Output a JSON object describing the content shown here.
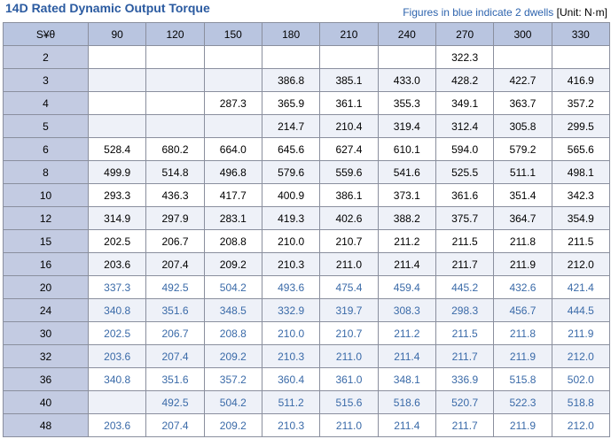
{
  "header": {
    "title": "14D Rated Dynamic Output Torque",
    "note": "Figures in blue indicate 2 dwells",
    "unit": "[Unit: N·m]"
  },
  "table": {
    "columns": [
      "S¥θ",
      "90",
      "120",
      "150",
      "180",
      "210",
      "240",
      "270",
      "300",
      "330"
    ],
    "rows": [
      {
        "label": "2",
        "color": "#000000",
        "cells": [
          null,
          null,
          null,
          null,
          null,
          null,
          "322.3",
          null,
          null
        ]
      },
      {
        "label": "3",
        "color": "#000000",
        "cells": [
          null,
          null,
          null,
          "386.8",
          "385.1",
          "433.0",
          "428.2",
          "422.7",
          "416.9"
        ]
      },
      {
        "label": "4",
        "color": "#000000",
        "cells": [
          null,
          null,
          "287.3",
          "365.9",
          "361.1",
          "355.3",
          "349.1",
          "363.7",
          "357.2"
        ]
      },
      {
        "label": "5",
        "color": "#000000",
        "cells": [
          null,
          null,
          null,
          "214.7",
          "210.4",
          "319.4",
          "312.4",
          "305.8",
          "299.5"
        ]
      },
      {
        "label": "6",
        "color": "#000000",
        "cells": [
          "528.4",
          "680.2",
          "664.0",
          "645.6",
          "627.4",
          "610.1",
          "594.0",
          "579.2",
          "565.6"
        ]
      },
      {
        "label": "8",
        "color": "#000000",
        "cells": [
          "499.9",
          "514.8",
          "496.8",
          "579.6",
          "559.6",
          "541.6",
          "525.5",
          "511.1",
          "498.1"
        ]
      },
      {
        "label": "10",
        "color": "#000000",
        "cells": [
          "293.3",
          "436.3",
          "417.7",
          "400.9",
          "386.1",
          "373.1",
          "361.6",
          "351.4",
          "342.3"
        ]
      },
      {
        "label": "12",
        "color": "#000000",
        "cells": [
          "314.9",
          "297.9",
          "283.1",
          "419.3",
          "402.6",
          "388.2",
          "375.7",
          "364.7",
          "354.9"
        ]
      },
      {
        "label": "15",
        "color": "#000000",
        "cells": [
          "202.5",
          "206.7",
          "208.8",
          "210.0",
          "210.7",
          "211.2",
          "211.5",
          "211.8",
          "211.5"
        ]
      },
      {
        "label": "16",
        "color": "#000000",
        "cells": [
          "203.6",
          "207.4",
          "209.2",
          "210.3",
          "211.0",
          "211.4",
          "211.7",
          "211.9",
          "212.0"
        ]
      },
      {
        "label": "20",
        "color": "#3a6aa8",
        "cells": [
          "337.3",
          "492.5",
          "504.2",
          "493.6",
          "475.4",
          "459.4",
          "445.2",
          "432.6",
          "421.4"
        ]
      },
      {
        "label": "24",
        "color": "#3a6aa8",
        "cells": [
          "340.8",
          "351.6",
          "348.5",
          "332.9",
          "319.7",
          "308.3",
          "298.3",
          "456.7",
          "444.5"
        ]
      },
      {
        "label": "30",
        "color": "#3a6aa8",
        "cells": [
          "202.5",
          "206.7",
          "208.8",
          "210.0",
          "210.7",
          "211.2",
          "211.5",
          "211.8",
          "211.9"
        ]
      },
      {
        "label": "32",
        "color": "#3a6aa8",
        "cells": [
          "203.6",
          "207.4",
          "209.2",
          "210.3",
          "211.0",
          "211.4",
          "211.7",
          "211.9",
          "212.0"
        ]
      },
      {
        "label": "36",
        "color": "#3a6aa8",
        "cells": [
          "340.8",
          "351.6",
          "357.2",
          "360.4",
          "361.0",
          "348.1",
          "336.9",
          "515.8",
          "502.0"
        ]
      },
      {
        "label": "40",
        "color": "#3a6aa8",
        "cells": [
          null,
          "492.5",
          "504.2",
          "511.2",
          "515.6",
          "518.6",
          "520.7",
          "522.3",
          "518.8"
        ]
      },
      {
        "label": "48",
        "color": "#3a6aa8",
        "cells": [
          "203.6",
          "207.4",
          "209.2",
          "210.3",
          "211.0",
          "211.4",
          "211.7",
          "211.9",
          "212.0"
        ]
      }
    ]
  }
}
